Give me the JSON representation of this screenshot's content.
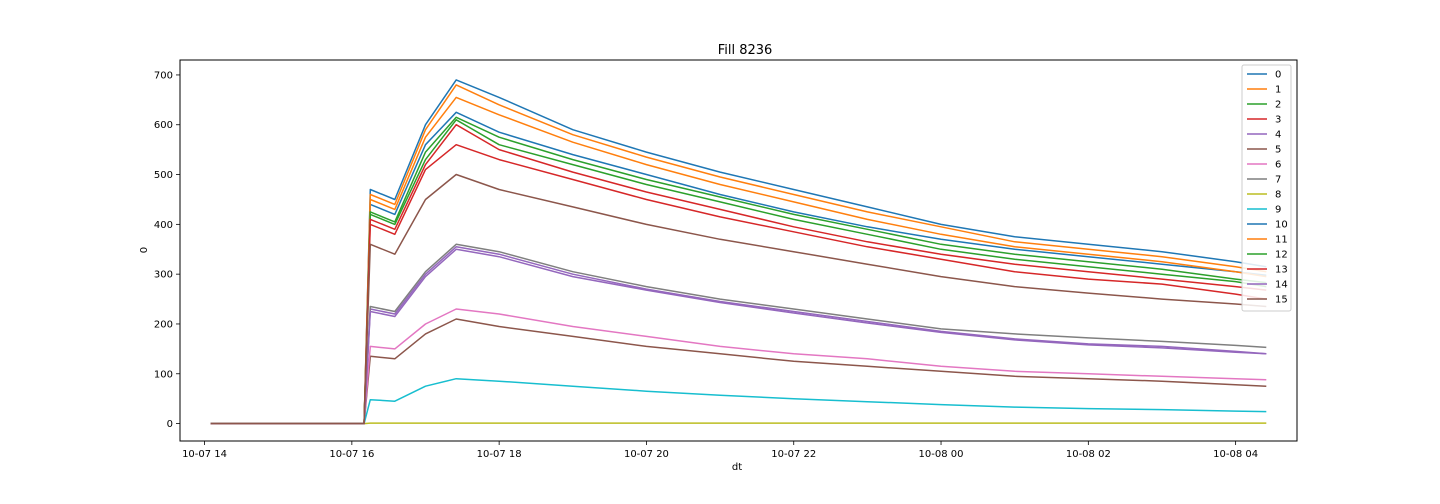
{
  "chart_data": {
    "type": "line",
    "title": "Fill 8236",
    "xlabel": "dt",
    "ylabel": "0",
    "x_ticks": [
      "10-07 14",
      "10-07 16",
      "10-07 18",
      "10-07 20",
      "10-07 22",
      "10-08 00",
      "10-08 02",
      "10-08 04"
    ],
    "y_ticks": [
      0,
      100,
      200,
      300,
      400,
      500,
      600,
      700
    ],
    "xlim": [
      "2022-10-07 13:40",
      "2022-10-08 04:50"
    ],
    "ylim": [
      -35,
      730
    ],
    "grid": false,
    "legend_position": "upper right",
    "colors": [
      "#1f77b4",
      "#ff7f0e",
      "#2ca02c",
      "#d62728",
      "#9467bd",
      "#8c564b",
      "#e377c2",
      "#7f7f7f",
      "#bcbd22",
      "#17becf",
      "#1f77b4",
      "#ff7f0e",
      "#2ca02c",
      "#d62728",
      "#9467bd",
      "#8c564b"
    ],
    "series": [
      {
        "name": "0",
        "x": [
          "2022-10-07 14:05",
          "2022-10-07 16:10",
          "2022-10-07 16:15",
          "2022-10-07 16:35",
          "2022-10-07 17:00",
          "2022-10-07 17:25",
          "2022-10-07 18:00",
          "2022-10-07 19:00",
          "2022-10-07 20:00",
          "2022-10-07 21:00",
          "2022-10-07 22:00",
          "2022-10-07 23:00",
          "2022-10-08 00:00",
          "2022-10-08 01:00",
          "2022-10-08 02:00",
          "2022-10-08 03:00",
          "2022-10-08 04:00",
          "2022-10-08 04:25"
        ],
        "y": [
          0,
          0,
          470,
          450,
          600,
          690,
          655,
          590,
          545,
          505,
          470,
          435,
          400,
          375,
          360,
          345,
          325,
          315
        ]
      },
      {
        "name": "1",
        "x": [
          "2022-10-07 14:05",
          "2022-10-07 16:10",
          "2022-10-07 16:15",
          "2022-10-07 16:35",
          "2022-10-07 17:00",
          "2022-10-07 17:25",
          "2022-10-07 18:00",
          "2022-10-07 19:00",
          "2022-10-07 20:00",
          "2022-10-07 21:00",
          "2022-10-07 22:00",
          "2022-10-07 23:00",
          "2022-10-08 00:00",
          "2022-10-08 01:00",
          "2022-10-08 02:00",
          "2022-10-08 03:00",
          "2022-10-08 04:00",
          "2022-10-08 04:25"
        ],
        "y": [
          0,
          0,
          460,
          440,
          590,
          680,
          640,
          580,
          535,
          495,
          460,
          425,
          395,
          365,
          350,
          335,
          315,
          305
        ]
      },
      {
        "name": "2",
        "x": [
          "2022-10-07 14:05",
          "2022-10-07 16:10",
          "2022-10-07 16:15",
          "2022-10-07 16:35",
          "2022-10-07 17:00",
          "2022-10-07 17:25",
          "2022-10-07 18:00",
          "2022-10-07 19:00",
          "2022-10-07 20:00",
          "2022-10-07 21:00",
          "2022-10-07 22:00",
          "2022-10-07 23:00",
          "2022-10-08 00:00",
          "2022-10-08 01:00",
          "2022-10-08 02:00",
          "2022-10-08 03:00",
          "2022-10-08 04:00",
          "2022-10-08 04:25"
        ],
        "y": [
          0,
          0,
          420,
          400,
          530,
          610,
          560,
          520,
          480,
          445,
          410,
          380,
          350,
          330,
          315,
          300,
          285,
          275
        ]
      },
      {
        "name": "3",
        "x": [
          "2022-10-07 14:05",
          "2022-10-07 16:10",
          "2022-10-07 16:15",
          "2022-10-07 16:35",
          "2022-10-07 17:00",
          "2022-10-07 17:25",
          "2022-10-07 18:00",
          "2022-10-07 19:00",
          "2022-10-07 20:00",
          "2022-10-07 21:00",
          "2022-10-07 22:00",
          "2022-10-07 23:00",
          "2022-10-08 00:00",
          "2022-10-08 01:00",
          "2022-10-08 02:00",
          "2022-10-08 03:00",
          "2022-10-08 04:00",
          "2022-10-08 04:25"
        ],
        "y": [
          0,
          0,
          400,
          380,
          510,
          560,
          530,
          490,
          450,
          415,
          385,
          355,
          330,
          305,
          290,
          280,
          260,
          250
        ]
      },
      {
        "name": "4",
        "x": [
          "2022-10-07 14:05",
          "2022-10-07 16:10",
          "2022-10-07 16:15",
          "2022-10-07 16:35",
          "2022-10-07 17:00",
          "2022-10-07 17:25",
          "2022-10-07 18:00",
          "2022-10-07 19:00",
          "2022-10-07 20:00",
          "2022-10-07 21:00",
          "2022-10-07 22:00",
          "2022-10-07 23:00",
          "2022-10-08 00:00",
          "2022-10-08 01:00",
          "2022-10-08 02:00",
          "2022-10-08 03:00",
          "2022-10-08 04:00",
          "2022-10-08 04:25"
        ],
        "y": [
          0,
          0,
          230,
          220,
          300,
          355,
          340,
          300,
          270,
          245,
          225,
          205,
          185,
          170,
          160,
          155,
          145,
          140
        ]
      },
      {
        "name": "5",
        "x": [
          "2022-10-07 14:05",
          "2022-10-07 16:10",
          "2022-10-07 16:15",
          "2022-10-07 16:35",
          "2022-10-07 17:00",
          "2022-10-07 17:25",
          "2022-10-07 18:00",
          "2022-10-07 19:00",
          "2022-10-07 20:00",
          "2022-10-07 21:00",
          "2022-10-07 22:00",
          "2022-10-07 23:00",
          "2022-10-08 00:00",
          "2022-10-08 01:00",
          "2022-10-08 02:00",
          "2022-10-08 03:00",
          "2022-10-08 04:00",
          "2022-10-08 04:25"
        ],
        "y": [
          0,
          0,
          135,
          130,
          180,
          210,
          195,
          175,
          155,
          140,
          125,
          115,
          105,
          95,
          90,
          85,
          78,
          75
        ]
      },
      {
        "name": "6",
        "x": [
          "2022-10-07 14:05",
          "2022-10-07 16:10",
          "2022-10-07 16:15",
          "2022-10-07 16:35",
          "2022-10-07 17:00",
          "2022-10-07 17:25",
          "2022-10-07 18:00",
          "2022-10-07 19:00",
          "2022-10-07 20:00",
          "2022-10-07 21:00",
          "2022-10-07 22:00",
          "2022-10-07 23:00",
          "2022-10-08 00:00",
          "2022-10-08 01:00",
          "2022-10-08 02:00",
          "2022-10-08 03:00",
          "2022-10-08 04:00",
          "2022-10-08 04:25"
        ],
        "y": [
          0,
          0,
          155,
          150,
          200,
          230,
          220,
          195,
          175,
          155,
          140,
          130,
          115,
          105,
          100,
          95,
          90,
          88
        ]
      },
      {
        "name": "7",
        "x": [
          "2022-10-07 14:05",
          "2022-10-07 16:10",
          "2022-10-07 16:15",
          "2022-10-07 16:35",
          "2022-10-07 17:00",
          "2022-10-07 17:25",
          "2022-10-07 18:00",
          "2022-10-07 19:00",
          "2022-10-07 20:00",
          "2022-10-07 21:00",
          "2022-10-07 22:00",
          "2022-10-07 23:00",
          "2022-10-08 00:00",
          "2022-10-08 01:00",
          "2022-10-08 02:00",
          "2022-10-08 03:00",
          "2022-10-08 04:00",
          "2022-10-08 04:25"
        ],
        "y": [
          0,
          0,
          235,
          225,
          305,
          360,
          345,
          305,
          275,
          250,
          230,
          210,
          190,
          180,
          172,
          165,
          157,
          153
        ]
      },
      {
        "name": "8",
        "x": [
          "2022-10-07 14:05",
          "2022-10-07 16:10",
          "2022-10-07 16:15",
          "2022-10-08 04:25"
        ],
        "y": [
          0,
          0,
          1,
          1
        ]
      },
      {
        "name": "9",
        "x": [
          "2022-10-07 14:05",
          "2022-10-07 16:10",
          "2022-10-07 16:15",
          "2022-10-07 16:35",
          "2022-10-07 17:00",
          "2022-10-07 17:25",
          "2022-10-07 18:00",
          "2022-10-07 19:00",
          "2022-10-07 20:00",
          "2022-10-07 21:00",
          "2022-10-07 22:00",
          "2022-10-07 23:00",
          "2022-10-08 00:00",
          "2022-10-08 01:00",
          "2022-10-08 02:00",
          "2022-10-08 03:00",
          "2022-10-08 04:00",
          "2022-10-08 04:25"
        ],
        "y": [
          0,
          0,
          48,
          45,
          75,
          90,
          85,
          75,
          65,
          57,
          50,
          44,
          38,
          33,
          30,
          28,
          25,
          24
        ]
      },
      {
        "name": "10",
        "x": [
          "2022-10-07 14:05",
          "2022-10-07 16:10",
          "2022-10-07 16:15",
          "2022-10-07 16:35",
          "2022-10-07 17:00",
          "2022-10-07 17:25",
          "2022-10-07 18:00",
          "2022-10-07 19:00",
          "2022-10-07 20:00",
          "2022-10-07 21:00",
          "2022-10-07 22:00",
          "2022-10-07 23:00",
          "2022-10-08 00:00",
          "2022-10-08 01:00",
          "2022-10-08 02:00",
          "2022-10-08 03:00",
          "2022-10-08 04:00",
          "2022-10-08 04:25"
        ],
        "y": [
          0,
          0,
          440,
          420,
          560,
          625,
          585,
          540,
          500,
          460,
          425,
          395,
          370,
          350,
          335,
          320,
          305,
          298
        ]
      },
      {
        "name": "11",
        "x": [
          "2022-10-07 14:05",
          "2022-10-07 16:10",
          "2022-10-07 16:15",
          "2022-10-07 16:35",
          "2022-10-07 17:00",
          "2022-10-07 17:25",
          "2022-10-07 18:00",
          "2022-10-07 19:00",
          "2022-10-07 20:00",
          "2022-10-07 21:00",
          "2022-10-07 22:00",
          "2022-10-07 23:00",
          "2022-10-08 00:00",
          "2022-10-08 01:00",
          "2022-10-08 02:00",
          "2022-10-08 03:00",
          "2022-10-08 04:00",
          "2022-10-08 04:25"
        ],
        "y": [
          0,
          0,
          450,
          430,
          575,
          655,
          620,
          565,
          520,
          480,
          445,
          410,
          380,
          355,
          340,
          325,
          305,
          295
        ]
      },
      {
        "name": "12",
        "x": [
          "2022-10-07 14:05",
          "2022-10-07 16:10",
          "2022-10-07 16:15",
          "2022-10-07 16:35",
          "2022-10-07 17:00",
          "2022-10-07 17:25",
          "2022-10-07 18:00",
          "2022-10-07 19:00",
          "2022-10-07 20:00",
          "2022-10-07 21:00",
          "2022-10-07 22:00",
          "2022-10-07 23:00",
          "2022-10-08 00:00",
          "2022-10-08 01:00",
          "2022-10-08 02:00",
          "2022-10-08 03:00",
          "2022-10-08 04:00",
          "2022-10-08 04:25"
        ],
        "y": [
          0,
          0,
          425,
          405,
          545,
          615,
          575,
          530,
          490,
          455,
          420,
          390,
          360,
          340,
          325,
          310,
          290,
          283
        ]
      },
      {
        "name": "13",
        "x": [
          "2022-10-07 14:05",
          "2022-10-07 16:10",
          "2022-10-07 16:15",
          "2022-10-07 16:35",
          "2022-10-07 17:00",
          "2022-10-07 17:25",
          "2022-10-07 18:00",
          "2022-10-07 19:00",
          "2022-10-07 20:00",
          "2022-10-07 21:00",
          "2022-10-07 22:00",
          "2022-10-07 23:00",
          "2022-10-08 00:00",
          "2022-10-08 01:00",
          "2022-10-08 02:00",
          "2022-10-08 03:00",
          "2022-10-08 04:00",
          "2022-10-08 04:25"
        ],
        "y": [
          0,
          0,
          410,
          390,
          520,
          600,
          550,
          505,
          465,
          430,
          395,
          365,
          340,
          320,
          305,
          290,
          275,
          268
        ]
      },
      {
        "name": "14",
        "x": [
          "2022-10-07 14:05",
          "2022-10-07 16:10",
          "2022-10-07 16:15",
          "2022-10-07 16:35",
          "2022-10-07 17:00",
          "2022-10-07 17:25",
          "2022-10-07 18:00",
          "2022-10-07 19:00",
          "2022-10-07 20:00",
          "2022-10-07 21:00",
          "2022-10-07 22:00",
          "2022-10-07 23:00",
          "2022-10-08 00:00",
          "2022-10-08 01:00",
          "2022-10-08 02:00",
          "2022-10-08 03:00",
          "2022-10-08 04:00",
          "2022-10-08 04:25"
        ],
        "y": [
          0,
          0,
          225,
          215,
          295,
          350,
          335,
          295,
          268,
          243,
          222,
          202,
          183,
          168,
          158,
          152,
          143,
          140
        ]
      },
      {
        "name": "15",
        "x": [
          "2022-10-07 14:05",
          "2022-10-07 16:10",
          "2022-10-07 16:15",
          "2022-10-07 16:35",
          "2022-10-07 17:00",
          "2022-10-07 17:25",
          "2022-10-07 18:00",
          "2022-10-07 19:00",
          "2022-10-07 20:00",
          "2022-10-07 21:00",
          "2022-10-07 22:00",
          "2022-10-07 23:00",
          "2022-10-08 00:00",
          "2022-10-08 01:00",
          "2022-10-08 02:00",
          "2022-10-08 03:00",
          "2022-10-08 04:00",
          "2022-10-08 04:25"
        ],
        "y": [
          0,
          0,
          360,
          340,
          450,
          500,
          470,
          435,
          400,
          370,
          345,
          320,
          295,
          275,
          262,
          250,
          240,
          235
        ]
      }
    ]
  }
}
